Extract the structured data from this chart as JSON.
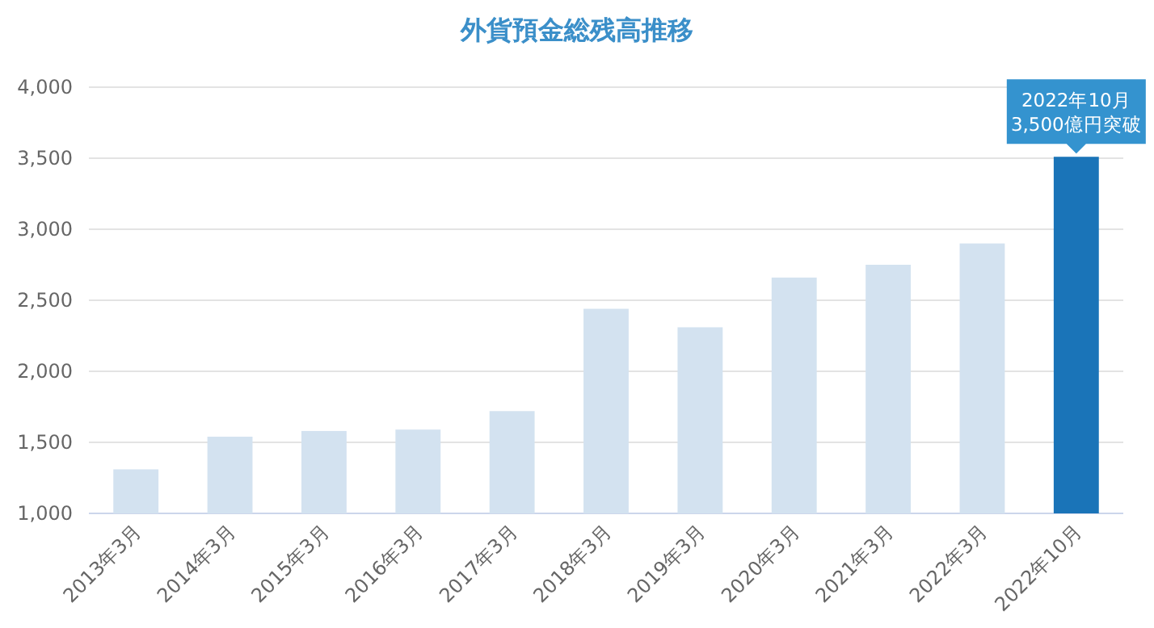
{
  "chart_data": {
    "type": "bar",
    "title": "外貨預金総残高推移",
    "categories": [
      "2013年3月",
      "2014年3月",
      "2015年3月",
      "2016年3月",
      "2017年3月",
      "2018年3月",
      "2019年3月",
      "2020年3月",
      "2021年3月",
      "2022年3月",
      "2022年10月"
    ],
    "values": [
      1310,
      1540,
      1580,
      1590,
      1720,
      2440,
      2310,
      2660,
      2750,
      2900,
      3510
    ],
    "colors": [
      "#d3e2f0",
      "#d3e2f0",
      "#d3e2f0",
      "#d3e2f0",
      "#d3e2f0",
      "#d3e2f0",
      "#d3e2f0",
      "#d3e2f0",
      "#d3e2f0",
      "#d3e2f0",
      "#1a74b8"
    ],
    "ylim": [
      1000,
      4000
    ],
    "yticks": [
      {
        "value": 1000,
        "label": "1,000"
      },
      {
        "value": 1500,
        "label": "1,500"
      },
      {
        "value": 2000,
        "label": "2,000"
      },
      {
        "value": 2500,
        "label": "2,500"
      },
      {
        "value": 3000,
        "label": "3,000"
      },
      {
        "value": 3500,
        "label": "3,500"
      },
      {
        "value": 4000,
        "label": "4,000"
      }
    ],
    "grid": "y",
    "annotations": [
      {
        "text": "2022年10月\n3,500億円突破",
        "x": "2022年10月",
        "y": 3510
      }
    ]
  }
}
